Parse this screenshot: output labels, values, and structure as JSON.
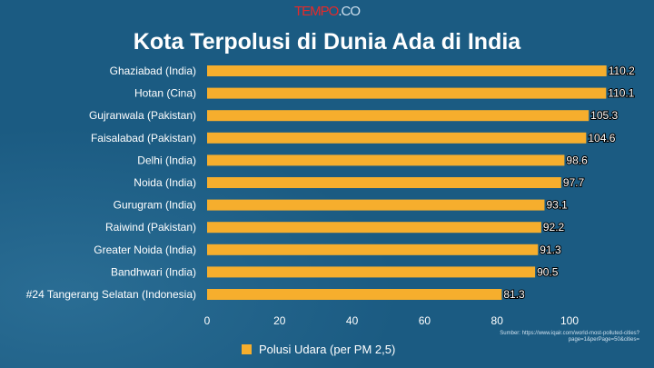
{
  "logo": {
    "part1": "TEMPO",
    "part2": ".CO"
  },
  "chart_data": {
    "type": "bar",
    "orientation": "horizontal",
    "title": "Kota Terpolusi di Dunia Ada di India",
    "categories": [
      "Ghaziabad (India)",
      "Hotan (Cina)",
      "Gujranwala (Pakistan)",
      "Faisalabad (Pakistan)",
      "Delhi (India)",
      "Noida (India)",
      "Gurugram (India)",
      "Raiwind (Pakistan)",
      "Greater Noida (India)",
      "Bandhwari (India)",
      "#24 Tangerang Selatan (Indonesia)"
    ],
    "series": [
      {
        "name": "Polusi Udara (per PM 2,5)",
        "values": [
          110.2,
          110.1,
          105.3,
          104.6,
          98.6,
          97.7,
          93.1,
          92.2,
          91.3,
          90.5,
          81.3
        ],
        "color": "#f6ae2d"
      }
    ],
    "labels": [
      "110.2",
      "110.1",
      "105.3",
      "104.6",
      "98.6",
      "97.7",
      "93.1",
      "92.2",
      "91.3",
      "90.5",
      "81.3"
    ],
    "xticks": [
      "0",
      "20",
      "40",
      "60",
      "80",
      "100"
    ],
    "xtick_values": [
      0,
      20,
      40,
      60,
      80,
      100
    ],
    "xlim": [
      0,
      120
    ],
    "legend": "bottom"
  },
  "source": {
    "line1": "Sumber: https://www.iqair.com/world-most-polluted-cities?",
    "line2": "page=1&perPage=50&cities="
  }
}
